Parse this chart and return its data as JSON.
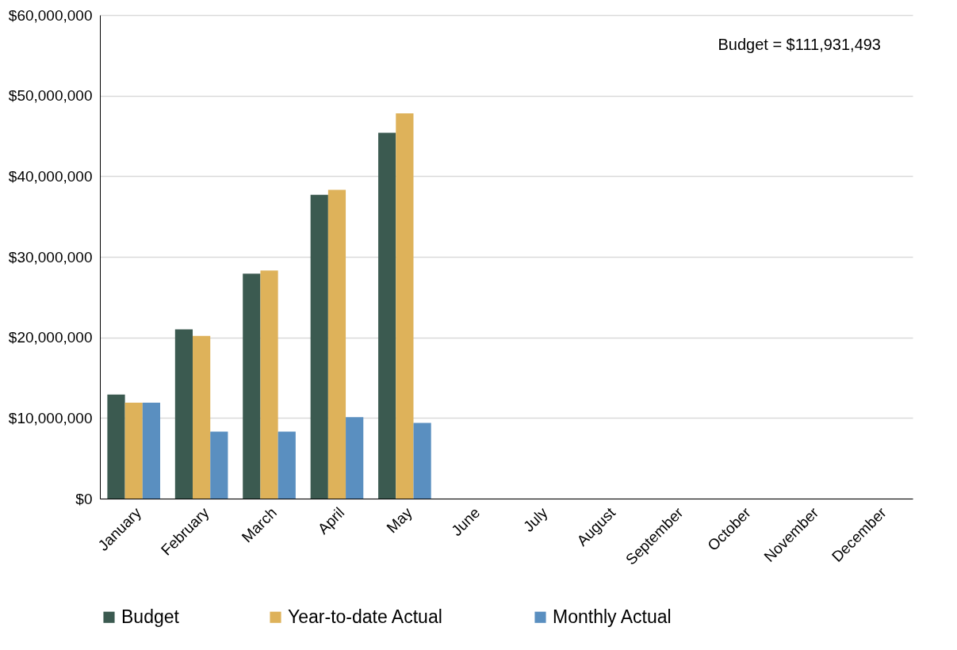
{
  "chart_data": {
    "type": "bar",
    "categories": [
      "January",
      "February",
      "March",
      "April",
      "May",
      "June",
      "July",
      "August",
      "September",
      "October",
      "November",
      "December"
    ],
    "series": [
      {
        "name": "Budget",
        "color": "#3b5a50",
        "values": [
          12900000.0,
          21000000.0,
          27900000.0,
          37700000.0,
          45400000.0,
          null,
          null,
          null,
          null,
          null,
          null,
          null
        ]
      },
      {
        "name": "Year-to-date Actual",
        "color": "#deb25a",
        "values": [
          11900000.0,
          20200000.0,
          28300000.0,
          38300000.0,
          47800000.0,
          null,
          null,
          null,
          null,
          null,
          null,
          null
        ]
      },
      {
        "name": "Monthly Actual",
        "color": "#5a8fc0",
        "values": [
          11900000.0,
          8300000.0,
          8300000.0,
          10100000.0,
          9400000.0,
          null,
          null,
          null,
          null,
          null,
          null,
          null
        ]
      }
    ],
    "ylim": [
      0,
      60000000
    ],
    "yticks": [
      {
        "value": 0,
        "label": "$0"
      },
      {
        "value": 10000000,
        "label": "$10,000,000"
      },
      {
        "value": 20000000,
        "label": "$20,000,000"
      },
      {
        "value": 30000000,
        "label": "$30,000,000"
      },
      {
        "value": 40000000,
        "label": "$40,000,000"
      },
      {
        "value": 50000000,
        "label": "$50,000,000"
      },
      {
        "value": 60000000,
        "label": "$60,000,000"
      }
    ],
    "annotations": [
      "Budget = $111,931,493"
    ],
    "grid": "y",
    "legend": "bottom"
  }
}
